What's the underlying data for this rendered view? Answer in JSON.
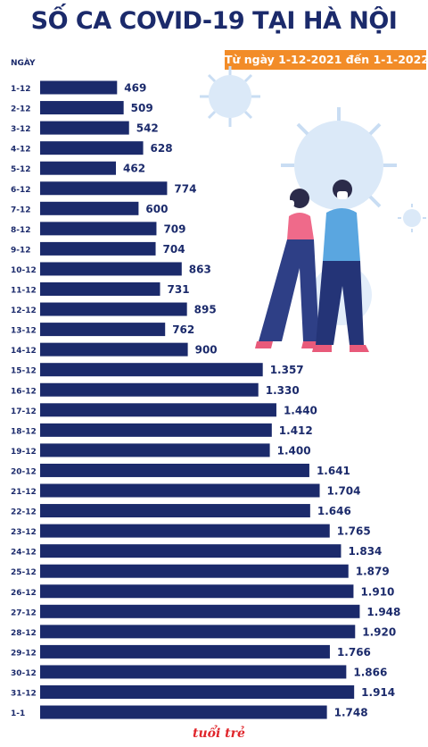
{
  "header": {
    "title": "SỐ CA COVID-19 TẠI HÀ NỘI",
    "subtitle": "Từ ngày 1-12-2021 đến 1-1-2022"
  },
  "logo": {
    "text": "tuổi trẻ"
  },
  "colors": {
    "bar": "#1b2a6b",
    "accent": "#f28c28",
    "text": "#1b2a6b",
    "logo": "#e0262c"
  },
  "chart_data": {
    "type": "bar",
    "orientation": "horizontal",
    "title": "SỐ CA COVID-19 TẠI HÀ NỘI",
    "subtitle": "Từ ngày 1-12-2021 đến 1-1-2022",
    "ylabel": "NGÀY",
    "xlabel": "",
    "xlim": [
      0,
      2000
    ],
    "grid": false,
    "categories": [
      "1-12",
      "2-12",
      "3-12",
      "4-12",
      "5-12",
      "6-12",
      "7-12",
      "8-12",
      "9-12",
      "10-12",
      "11-12",
      "12-12",
      "13-12",
      "14-12",
      "15-12",
      "16-12",
      "17-12",
      "18-12",
      "19-12",
      "20-12",
      "21-12",
      "22-12",
      "23-12",
      "24-12",
      "25-12",
      "26-12",
      "27-12",
      "28-12",
      "29-12",
      "30-12",
      "31-12",
      "1-1"
    ],
    "values": [
      469,
      509,
      542,
      628,
      462,
      774,
      600,
      709,
      704,
      863,
      731,
      895,
      762,
      900,
      1357,
      1330,
      1440,
      1412,
      1400,
      1641,
      1704,
      1646,
      1765,
      1834,
      1879,
      1910,
      1948,
      1920,
      1766,
      1866,
      1914,
      1748
    ],
    "value_labels": [
      "469",
      "509",
      "542",
      "628",
      "462",
      "774",
      "600",
      "709",
      "704",
      "863",
      "731",
      "895",
      "762",
      "900",
      "1.357",
      "1.330",
      "1.440",
      "1.412",
      "1.400",
      "1.641",
      "1.704",
      "1.646",
      "1.765",
      "1.834",
      "1.879",
      "1.910",
      "1.948",
      "1.920",
      "1.766",
      "1.866",
      "1.914",
      "1.748"
    ]
  }
}
